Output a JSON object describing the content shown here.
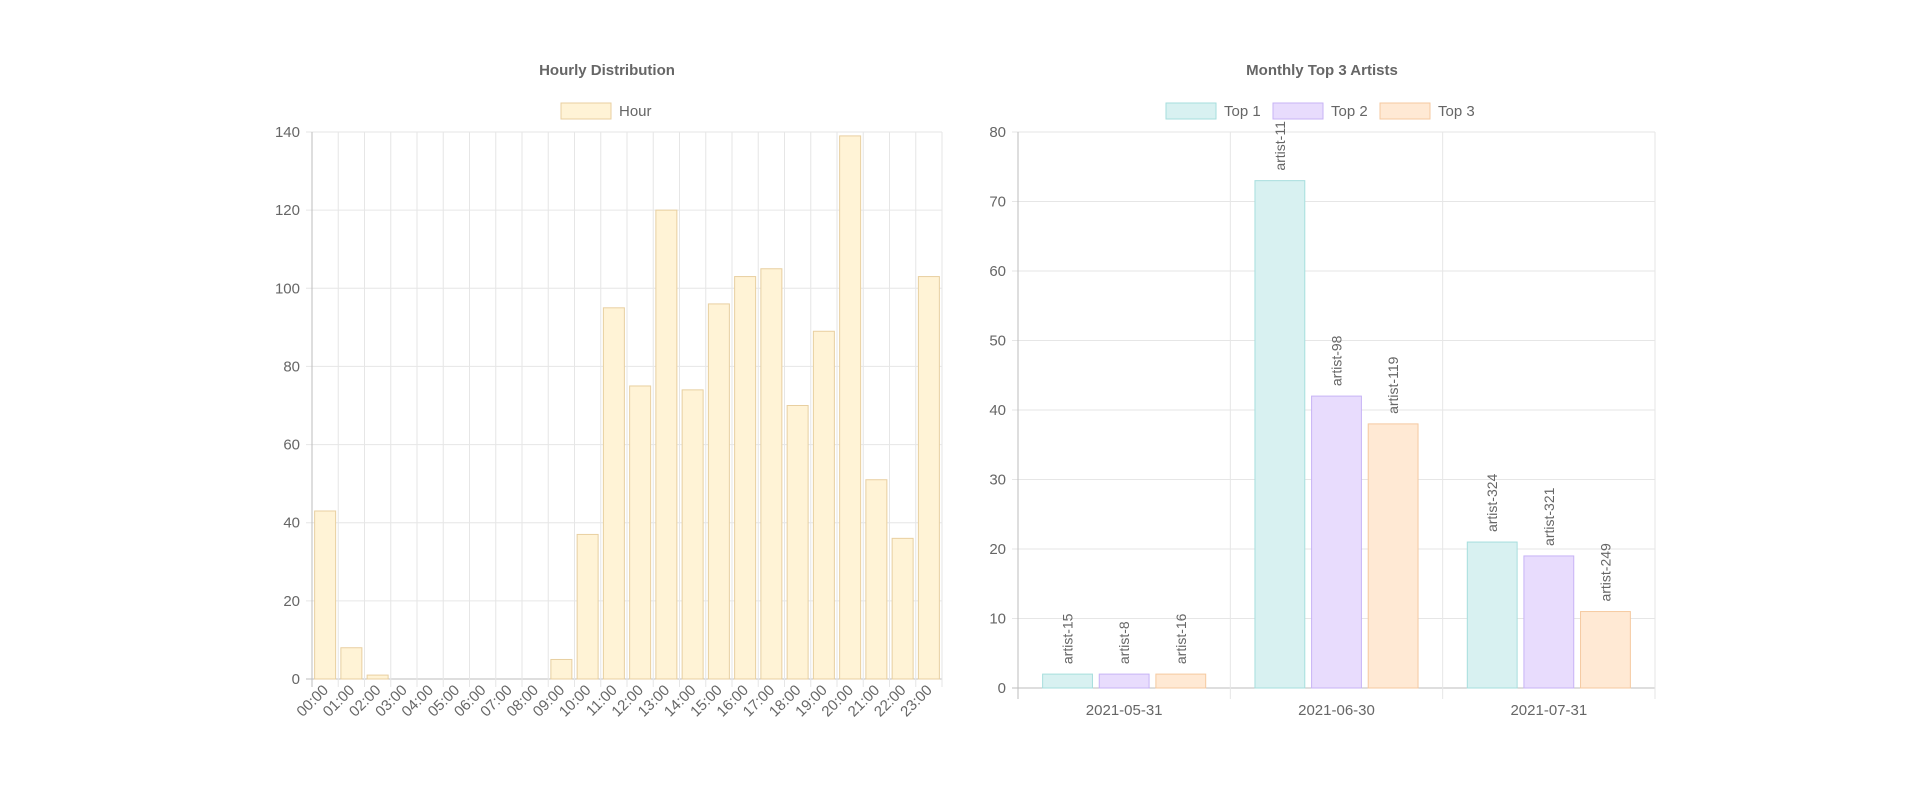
{
  "charts": {
    "hourly": {
      "title": "Hourly Distribution",
      "legend": "Hour",
      "color_fill": "#fff3d6",
      "color_stroke": "#e8cfa0"
    },
    "artists": {
      "title": "Monthly Top 3 Artists",
      "legend": [
        "Top 1",
        "Top 2",
        "Top 3"
      ],
      "fills": [
        "#d8f1f1",
        "#e8dcfd",
        "#ffe9d4"
      ],
      "strokes": [
        "#a6dedd",
        "#c7b3f5",
        "#f5c9a0"
      ]
    }
  },
  "chart_data": [
    {
      "type": "bar",
      "title": "Hourly Distribution",
      "xlabel": "",
      "ylabel": "",
      "categories": [
        "00:00",
        "01:00",
        "02:00",
        "03:00",
        "04:00",
        "05:00",
        "06:00",
        "07:00",
        "08:00",
        "09:00",
        "10:00",
        "11:00",
        "12:00",
        "13:00",
        "14:00",
        "15:00",
        "16:00",
        "17:00",
        "18:00",
        "19:00",
        "20:00",
        "21:00",
        "22:00",
        "23:00"
      ],
      "series": [
        {
          "name": "Hour",
          "values": [
            43,
            8,
            1,
            0,
            0,
            0,
            0,
            0,
            0,
            5,
            37,
            95,
            75,
            120,
            74,
            96,
            103,
            105,
            70,
            89,
            139,
            51,
            36,
            103
          ]
        }
      ],
      "ylim": [
        0,
        140
      ],
      "yticks": [
        0,
        20,
        40,
        60,
        80,
        100,
        120,
        140
      ],
      "grid": true,
      "legend_position": "top"
    },
    {
      "type": "bar",
      "title": "Monthly Top 3 Artists",
      "xlabel": "",
      "ylabel": "",
      "categories": [
        "2021-05-31",
        "2021-06-30",
        "2021-07-31"
      ],
      "series": [
        {
          "name": "Top 1",
          "values": [
            2,
            73,
            21
          ],
          "labels": [
            "artist-15",
            "artist-11",
            "artist-324"
          ]
        },
        {
          "name": "Top 2",
          "values": [
            2,
            42,
            19
          ],
          "labels": [
            "artist-8",
            "artist-98",
            "artist-321"
          ]
        },
        {
          "name": "Top 3",
          "values": [
            2,
            38,
            11
          ],
          "labels": [
            "artist-16",
            "artist-119",
            "artist-249"
          ]
        }
      ],
      "ylim": [
        0,
        80
      ],
      "yticks": [
        0,
        10,
        20,
        30,
        40,
        50,
        60,
        70,
        80
      ],
      "grid": true,
      "legend_position": "top"
    }
  ]
}
